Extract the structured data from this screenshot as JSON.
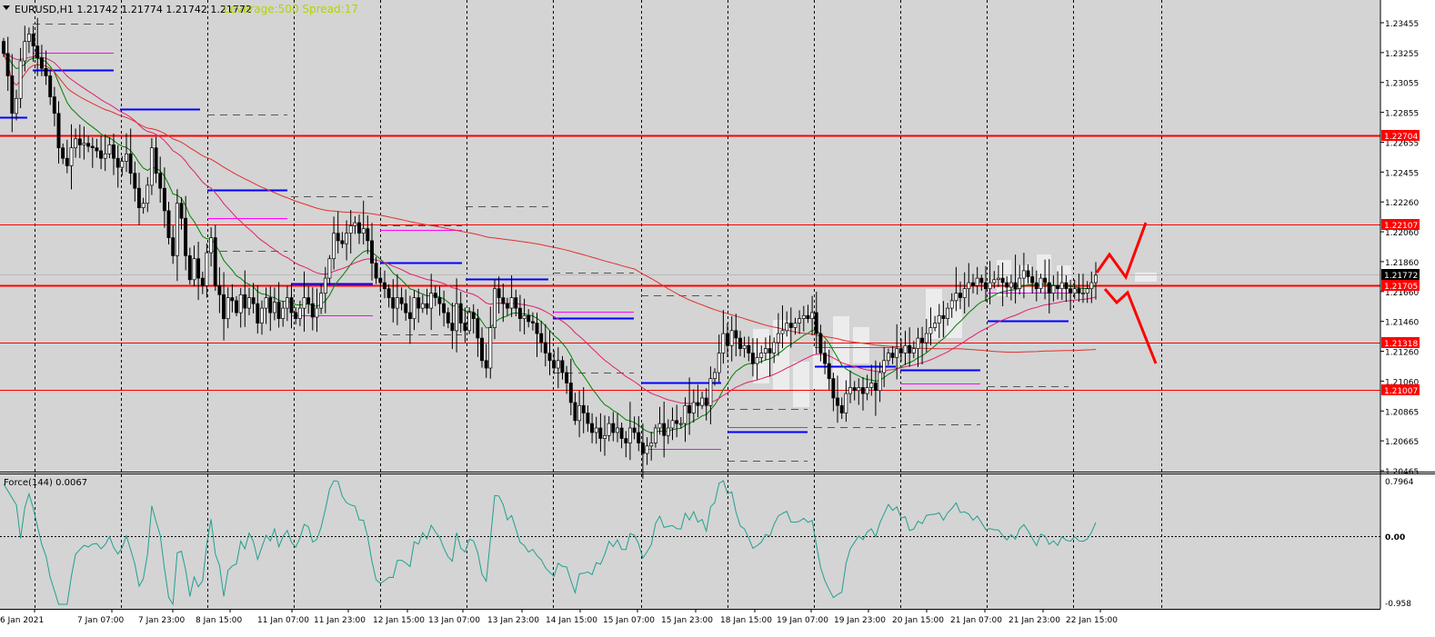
{
  "header": {
    "symbol_line": "EURUSD,H1  1.21742 1.21774 1.21742 1.21772",
    "leverage_line": "Leverage:500 Spread:17"
  },
  "indicator": {
    "label": "Force(144) 0.0067",
    "scale_labels": [
      "0.7964",
      "0.00",
      "-0.958"
    ]
  },
  "price_axis": {
    "tick_labels": [
      "1.23455",
      "1.23255",
      "1.23055",
      "1.22855",
      "1.22655",
      "1.22455",
      "1.22260",
      "1.22060",
      "1.21860",
      "1.21660",
      "1.21460",
      "1.21260",
      "1.21060",
      "1.20865",
      "1.20665",
      "1.20465"
    ],
    "current_price_label": "1.21772"
  },
  "time_axis": {
    "labels": [
      "6 Jan 2021",
      "7 Jan 07:00",
      "7 Jan 23:00",
      "8 Jan 15:00",
      "11 Jan 07:00",
      "11 Jan 23:00",
      "12 Jan 15:00",
      "13 Jan 07:00",
      "13 Jan 23:00",
      "14 Jan 15:00",
      "15 Jan 07:00",
      "15 Jan 23:00",
      "18 Jan 15:00",
      "19 Jan 07:00",
      "19 Jan 23:00",
      "20 Jan 15:00",
      "21 Jan 07:00",
      "21 Jan 23:00",
      "22 Jan 15:00"
    ]
  },
  "levels": [
    {
      "price": 1.22704,
      "label": "1.22704"
    },
    {
      "price": 1.22107,
      "label": "1.22107"
    },
    {
      "price": 1.21705,
      "label": "1.21705"
    },
    {
      "price": 1.21318,
      "label": "1.21318"
    },
    {
      "price": 1.21007,
      "label": "1.21007"
    }
  ],
  "colors": {
    "background": "#ffffff",
    "plot_background": "#d4d4d4",
    "level_line": "#ff0000",
    "level_label_bg": "#ff0000",
    "candle": "#000000",
    "ma_fast": "#008000",
    "ma_mid": "#e0206f",
    "ma_slow": "#e03030",
    "pivot_blue": "#0000ff",
    "pivot_magenta": "#ff00ff",
    "force_line": "#20a090",
    "header_text": "#000000",
    "leverage_text": "#b4d200",
    "current_price_bg": "#000000"
  },
  "chart_data": {
    "type": "candlestick",
    "symbol": "EURUSD",
    "timeframe": "H1",
    "ylim": [
      1.20465,
      1.23555
    ],
    "indicator_ylim": [
      -0.958,
      0.7964
    ],
    "grid": "vertical dashed at date labels",
    "close_series": [
      1.2325,
      1.231,
      1.2285,
      1.2295,
      1.232,
      1.2333,
      1.2338,
      1.233,
      1.2322,
      1.2315,
      1.231,
      1.2296,
      1.2285,
      1.2262,
      1.2255,
      1.225,
      1.2262,
      1.2268,
      1.2264,
      1.2265,
      1.2263,
      1.2262,
      1.226,
      1.2255,
      1.2258,
      1.2264,
      1.2255,
      1.2249,
      1.2253,
      1.2258,
      1.2245,
      1.2235,
      1.2222,
      1.2225,
      1.2237,
      1.2262,
      1.2245,
      1.2235,
      1.222,
      1.2202,
      1.219,
      1.2225,
      1.2215,
      1.219,
      1.2174,
      1.2188,
      1.2175,
      1.217,
      1.2192,
      1.2202,
      1.217,
      1.2164,
      1.2148,
      1.2162,
      1.216,
      1.2152,
      1.2164,
      1.2155,
      1.2162,
      1.2158,
      1.2145,
      1.2155,
      1.2162,
      1.2152,
      1.2159,
      1.2148,
      1.2155,
      1.2162,
      1.2152,
      1.2148,
      1.2155,
      1.2162,
      1.2158,
      1.2149,
      1.2155,
      1.2165,
      1.2175,
      1.2188,
      1.2205,
      1.22,
      1.2198,
      1.2205,
      1.221,
      1.2212,
      1.2205,
      1.2208,
      1.22,
      1.2185,
      1.2175,
      1.2172,
      1.2168,
      1.2162,
      1.2155,
      1.2162,
      1.2158,
      1.2152,
      1.2148,
      1.2162,
      1.2155,
      1.2158,
      1.2155,
      1.2165,
      1.2162,
      1.2158,
      1.2152,
      1.2145,
      1.214,
      1.2158,
      1.2145,
      1.214,
      1.2152,
      1.2148,
      1.2135,
      1.212,
      1.2115,
      1.2142,
      1.2168,
      1.2162,
      1.2158,
      1.2155,
      1.2162,
      1.2155,
      1.2148,
      1.215,
      1.2146,
      1.2145,
      1.2138,
      1.2132,
      1.2125,
      1.212,
      1.2115,
      1.212,
      1.2112,
      1.2105,
      1.2092,
      1.208,
      1.209,
      1.2085,
      1.2078,
      1.2072,
      1.2075,
      1.2068,
      1.207,
      1.2078,
      1.2072,
      1.2075,
      1.2068,
      1.2065,
      1.2075,
      1.2072,
      1.2065,
      1.2058,
      1.2063,
      1.2065,
      1.2075,
      1.2078,
      1.207,
      1.2075,
      1.208,
      1.2078,
      1.2078,
      1.209,
      1.2085,
      1.2092,
      1.209,
      1.2095,
      1.209,
      1.2108,
      1.2112,
      1.2125,
      1.2138,
      1.213,
      1.214,
      1.2135,
      1.2128,
      1.213,
      1.2125,
      1.2118,
      1.2122,
      1.2125,
      1.2128,
      1.2125,
      1.2132,
      1.2138,
      1.214,
      1.2145,
      1.2142,
      1.2145,
      1.2148,
      1.215,
      1.2148,
      1.2152,
      1.2138,
      1.2125,
      1.2118,
      1.2108,
      1.2095,
      1.209,
      1.2085,
      1.2098,
      1.2102,
      1.21,
      1.2102,
      1.2098,
      1.2102,
      1.2105,
      1.21,
      1.2112,
      1.212,
      1.2125,
      1.2122,
      1.2128,
      1.2125,
      1.213,
      1.2125,
      1.2128,
      1.2135,
      1.2132,
      1.2138,
      1.2142,
      1.2145,
      1.215,
      1.2148,
      1.2155,
      1.216,
      1.2165,
      1.2162,
      1.2168,
      1.2172,
      1.217,
      1.2175,
      1.2172,
      1.2168,
      1.2172,
      1.2174,
      1.2175,
      1.2172,
      1.2169,
      1.2172,
      1.2168,
      1.2175,
      1.218,
      1.2176,
      1.2172,
      1.2168,
      1.2175,
      1.2172,
      1.2165,
      1.217,
      1.2168,
      1.2172,
      1.2168,
      1.2165,
      1.2168,
      1.2165,
      1.2165,
      1.2168,
      1.2172,
      1.2177
    ]
  }
}
